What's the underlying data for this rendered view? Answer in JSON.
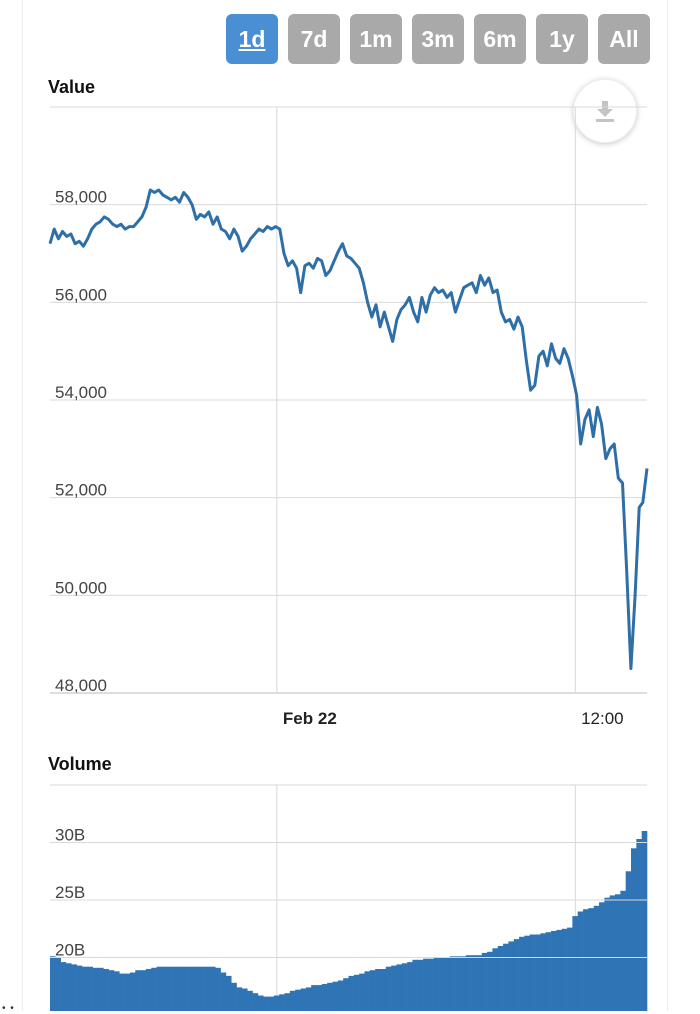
{
  "range_selector": {
    "buttons": [
      {
        "label": "1d",
        "active": true
      },
      {
        "label": "7d",
        "active": false
      },
      {
        "label": "1m",
        "active": false
      },
      {
        "label": "3m",
        "active": false
      },
      {
        "label": "6m",
        "active": false
      },
      {
        "label": "1y",
        "active": false
      },
      {
        "label": "All",
        "active": false
      }
    ]
  },
  "download": {
    "icon": "download-icon"
  },
  "colors": {
    "line": "#2f6fa8",
    "bar": "#2f74b5",
    "grid": "#d9d9d9",
    "active_button": "#4a8fd3",
    "inactive_button": "#a9a9a9"
  },
  "chart_data": [
    {
      "type": "line",
      "title": "Value",
      "ylim": [
        48000,
        60000
      ],
      "yticks": [
        48000,
        50000,
        52000,
        54000,
        56000,
        58000
      ],
      "ytick_labels": [
        "48,000",
        "50,000",
        "52,000",
        "54,000",
        "56,000",
        "58,000"
      ],
      "xlim": [
        0,
        100
      ],
      "x_ticks": [
        {
          "x": 38,
          "label": "Feb 22"
        },
        {
          "x": 88,
          "label": "12:00"
        }
      ],
      "grid": true,
      "series": [
        {
          "values": [
            [
              0,
              57200
            ],
            [
              0.7,
              57500
            ],
            [
              1.4,
              57300
            ],
            [
              2.1,
              57450
            ],
            [
              2.8,
              57350
            ],
            [
              3.5,
              57400
            ],
            [
              4.2,
              57200
            ],
            [
              4.9,
              57250
            ],
            [
              5.6,
              57150
            ],
            [
              6.3,
              57300
            ],
            [
              7.0,
              57500
            ],
            [
              7.7,
              57600
            ],
            [
              8.4,
              57650
            ],
            [
              9.1,
              57750
            ],
            [
              9.8,
              57700
            ],
            [
              10.5,
              57600
            ],
            [
              11.2,
              57550
            ],
            [
              11.9,
              57600
            ],
            [
              12.6,
              57500
            ],
            [
              13.3,
              57550
            ],
            [
              14.0,
              57550
            ],
            [
              14.7,
              57650
            ],
            [
              15.4,
              57750
            ],
            [
              16.1,
              57950
            ],
            [
              16.8,
              58300
            ],
            [
              17.5,
              58250
            ],
            [
              18.2,
              58300
            ],
            [
              18.9,
              58200
            ],
            [
              19.6,
              58150
            ],
            [
              20.3,
              58100
            ],
            [
              21.0,
              58150
            ],
            [
              21.7,
              58050
            ],
            [
              22.4,
              58250
            ],
            [
              23.1,
              58150
            ],
            [
              23.8,
              58000
            ],
            [
              24.5,
              57700
            ],
            [
              25.2,
              57800
            ],
            [
              25.9,
              57750
            ],
            [
              26.6,
              57850
            ],
            [
              27.3,
              57600
            ],
            [
              28.0,
              57750
            ],
            [
              28.7,
              57500
            ],
            [
              29.4,
              57450
            ],
            [
              30.1,
              57300
            ],
            [
              30.8,
              57500
            ],
            [
              31.5,
              57350
            ],
            [
              32.2,
              57050
            ],
            [
              32.9,
              57150
            ],
            [
              33.6,
              57300
            ],
            [
              34.3,
              57400
            ],
            [
              35.0,
              57500
            ],
            [
              35.7,
              57450
            ],
            [
              36.4,
              57550
            ],
            [
              37.1,
              57500
            ],
            [
              37.8,
              57550
            ],
            [
              38.5,
              57500
            ],
            [
              39.2,
              57000
            ],
            [
              39.9,
              56750
            ],
            [
              40.6,
              56850
            ],
            [
              41.3,
              56700
            ],
            [
              42.0,
              56200
            ],
            [
              42.7,
              56750
            ],
            [
              43.4,
              56800
            ],
            [
              44.1,
              56700
            ],
            [
              44.8,
              56900
            ],
            [
              45.5,
              56850
            ],
            [
              46.2,
              56550
            ],
            [
              46.9,
              56650
            ],
            [
              47.6,
              56850
            ],
            [
              48.3,
              57050
            ],
            [
              49.0,
              57200
            ],
            [
              49.7,
              56950
            ],
            [
              50.4,
              56900
            ],
            [
              51.1,
              56800
            ],
            [
              51.8,
              56700
            ],
            [
              52.5,
              56400
            ],
            [
              53.2,
              56000
            ],
            [
              53.9,
              55700
            ],
            [
              54.6,
              55950
            ],
            [
              55.3,
              55500
            ],
            [
              56.0,
              55800
            ],
            [
              56.7,
              55500
            ],
            [
              57.4,
              55200
            ],
            [
              58.1,
              55650
            ],
            [
              58.8,
              55850
            ],
            [
              59.5,
              55950
            ],
            [
              60.2,
              56100
            ],
            [
              60.9,
              55800
            ],
            [
              61.6,
              55600
            ],
            [
              62.3,
              56100
            ],
            [
              63.0,
              55800
            ],
            [
              63.7,
              56150
            ],
            [
              64.4,
              56300
            ],
            [
              65.1,
              56200
            ],
            [
              65.8,
              56250
            ],
            [
              66.5,
              56100
            ],
            [
              67.2,
              56200
            ],
            [
              67.9,
              55800
            ],
            [
              68.6,
              56050
            ],
            [
              69.3,
              56300
            ],
            [
              70.0,
              56350
            ],
            [
              70.7,
              56400
            ],
            [
              71.4,
              56200
            ],
            [
              72.1,
              56550
            ],
            [
              72.8,
              56350
            ],
            [
              73.5,
              56500
            ],
            [
              74.2,
              56200
            ],
            [
              74.9,
              56250
            ],
            [
              75.6,
              55800
            ],
            [
              76.3,
              55600
            ],
            [
              77.0,
              55650
            ],
            [
              77.7,
              55450
            ],
            [
              78.4,
              55700
            ],
            [
              79.1,
              55500
            ],
            [
              79.8,
              54800
            ],
            [
              80.5,
              54200
            ],
            [
              81.2,
              54300
            ],
            [
              81.9,
              54900
            ],
            [
              82.6,
              55000
            ],
            [
              83.3,
              54700
            ],
            [
              84.0,
              55150
            ],
            [
              84.7,
              54850
            ],
            [
              85.4,
              54750
            ],
            [
              86.1,
              55050
            ],
            [
              86.8,
              54850
            ],
            [
              87.5,
              54500
            ],
            [
              88.2,
              54100
            ],
            [
              88.9,
              53100
            ],
            [
              89.6,
              53600
            ],
            [
              90.3,
              53800
            ],
            [
              91.0,
              53250
            ],
            [
              91.7,
              53850
            ],
            [
              92.4,
              53500
            ],
            [
              93.1,
              52800
            ],
            [
              93.8,
              53000
            ],
            [
              94.5,
              53100
            ],
            [
              95.2,
              52400
            ],
            [
              95.9,
              52300
            ],
            [
              96.6,
              50500
            ],
            [
              97.3,
              48500
            ],
            [
              98.0,
              50000
            ],
            [
              98.7,
              51800
            ],
            [
              99.3,
              51900
            ],
            [
              100,
              52600
            ]
          ]
        }
      ]
    },
    {
      "type": "bar",
      "title": "Volume",
      "ylim": [
        15,
        35
      ],
      "yticks": [
        20,
        25,
        30
      ],
      "ytick_labels": [
        "20B",
        "25B",
        "30B"
      ],
      "xlim": [
        0,
        100
      ],
      "grid": true,
      "values": [
        20.1,
        20.0,
        19.6,
        19.5,
        19.4,
        19.3,
        19.2,
        19.2,
        19.1,
        19.1,
        19.0,
        18.9,
        18.8,
        18.6,
        18.6,
        18.7,
        18.9,
        18.9,
        19.0,
        19.1,
        19.2,
        19.2,
        19.2,
        19.2,
        19.2,
        19.2,
        19.2,
        19.2,
        19.2,
        19.2,
        19.2,
        19.1,
        18.7,
        18.4,
        17.8,
        17.4,
        17.3,
        17.1,
        16.9,
        16.7,
        16.6,
        16.6,
        16.7,
        16.8,
        16.9,
        17.1,
        17.2,
        17.3,
        17.4,
        17.6,
        17.6,
        17.7,
        17.8,
        17.9,
        18.0,
        18.2,
        18.4,
        18.5,
        18.6,
        18.8,
        18.9,
        19.0,
        19.0,
        19.2,
        19.3,
        19.4,
        19.5,
        19.6,
        19.8,
        19.8,
        19.9,
        19.9,
        20.0,
        20.0,
        20.0,
        20.1,
        20.1,
        20.1,
        20.2,
        20.2,
        20.2,
        20.4,
        20.5,
        20.8,
        21.0,
        21.2,
        21.4,
        21.6,
        21.8,
        21.9,
        22.0,
        22.0,
        22.1,
        22.2,
        22.3,
        22.4,
        22.5,
        22.6,
        23.6,
        24.0,
        24.2,
        24.3,
        24.5,
        24.8,
        25.2,
        25.4,
        25.5,
        25.8,
        27.5,
        29.5,
        30.3,
        31.0
      ]
    }
  ]
}
